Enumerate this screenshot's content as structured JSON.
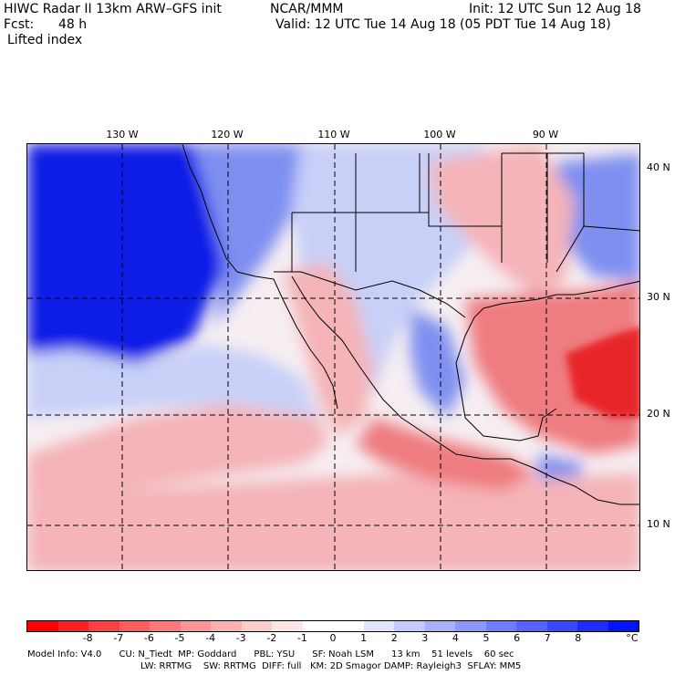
{
  "header": {
    "title": "HIWC Radar II 13km ARW–GFS init",
    "org": "NCAR/MMM",
    "init": "Init: 12 UTC Sun 12 Aug 18",
    "fcst_label": "Fcst:",
    "fcst_value": "48 h",
    "valid": "Valid: 12 UTC Tue 14 Aug 18 (05 PDT Tue 14 Aug 18)",
    "field": "Lifted index"
  },
  "map": {
    "lon_labels": [
      "130 W",
      "120 W",
      "110 W",
      "100 W",
      "90 W"
    ],
    "lat_labels": [
      "40 N",
      "30 N",
      "20 N",
      "10 N"
    ],
    "colors": {
      "ocean_stable": "#0a1ee6",
      "stable_mid": "#7f8ff0",
      "stable_light": "#c8d0f8",
      "neutral": "#f6eef2",
      "unstable_light": "#f4b4b8",
      "unstable_mid": "#ee7c80",
      "unstable_strong": "#e8262a"
    }
  },
  "legend": {
    "colors": [
      "#ff0000",
      "#ff2020",
      "#ff4040",
      "#ff5c5c",
      "#ff7878",
      "#ff9494",
      "#ffb0b0",
      "#ffcccc",
      "#ffe6e6",
      "#ffffff",
      "#ffffff",
      "#e0e4ff",
      "#c4caff",
      "#a8b0ff",
      "#8c96ff",
      "#707cff",
      "#5462ff",
      "#3848ff",
      "#1c2eff",
      "#0014ff"
    ],
    "ticks": [
      "-8",
      "-7",
      "-6",
      "-5",
      "-4",
      "-3",
      "-2",
      "-1",
      "0",
      "1",
      "2",
      "3",
      "4",
      "5",
      "6",
      "7",
      "8"
    ],
    "unit": "°C"
  },
  "model_info": {
    "line1": "Model Info: V4.0      CU: N_Tiedt  MP: Goddard      PBL: YSU      SF: Noah LSM      13 km    51 levels    60 sec",
    "line2": "LW: RRTMG    SW: RRTMG  DIFF: full   KM: 2D Smagor DAMP: Rayleigh3  SFLAY: MM5"
  }
}
